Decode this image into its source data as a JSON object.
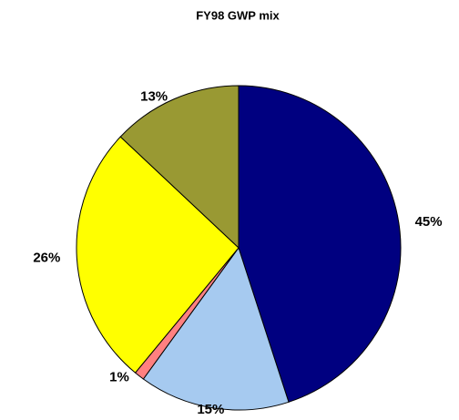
{
  "chart_data": {
    "type": "pie",
    "title": "FY98 GWP mix",
    "values": [
      45,
      15,
      1,
      26,
      13
    ],
    "value_labels": [
      "45%",
      "15%",
      "1%",
      "26%",
      "13%"
    ],
    "colors": [
      "#000080",
      "#a6caf0",
      "#ff8080",
      "#ffff00",
      "#999933"
    ]
  }
}
